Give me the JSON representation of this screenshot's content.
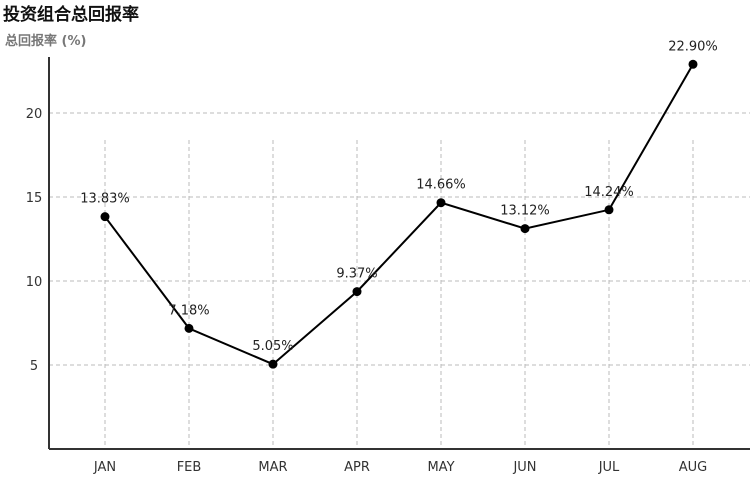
{
  "chart_data": {
    "type": "line",
    "title": "投资组合总回报率",
    "subtitle": "总回报率 (%)",
    "categories": [
      "JAN",
      "FEB",
      "MAR",
      "APR",
      "MAY",
      "JUN",
      "JUL",
      "AUG"
    ],
    "values": [
      13.83,
      7.18,
      5.05,
      9.37,
      14.66,
      13.12,
      14.24,
      22.9
    ],
    "value_labels": [
      "13.83%",
      "7.18%",
      "5.05%",
      "9.37%",
      "14.66%",
      "13.12%",
      "14.24%",
      "22.90%"
    ],
    "y_ticks": [
      "5",
      "10",
      "15",
      "20"
    ],
    "ylim": [
      0,
      25
    ],
    "grid": true,
    "line_color": "#000000",
    "grid_color": "#bbbbbb"
  }
}
